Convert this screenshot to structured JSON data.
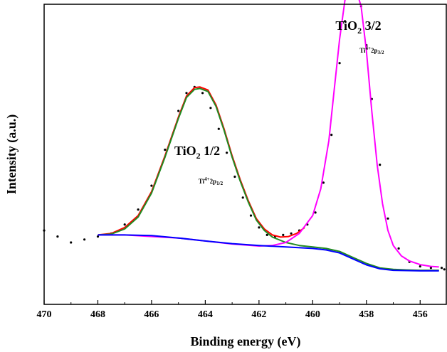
{
  "chart_data": {
    "type": "line",
    "title": "",
    "xlabel": "Binding energy (eV)",
    "ylabel": "Intensity (a.u.)",
    "xlim": [
      470,
      455
    ],
    "x_reversed": true,
    "y_tick_labels": false,
    "xticks": [
      470,
      468,
      466,
      464,
      462,
      460,
      458,
      456
    ],
    "xtick_labels": [
      "470",
      "468",
      "466",
      "464",
      "462",
      "460",
      "458",
      "456"
    ],
    "grid": false,
    "legend": "none",
    "annotations": [
      {
        "main": "TiO",
        "sub": "2",
        "tail": " 1/2",
        "x": 464.3
      },
      {
        "small_main": "Ti",
        "small_sup": "4+",
        "small_mid": "2p",
        "small_sub": "1/2",
        "x": 463.8
      },
      {
        "main": "TiO",
        "sub": "2",
        "tail": " 3/2",
        "x": 458.3
      },
      {
        "small_main": "Ti",
        "small_sup": "4+",
        "small_mid": "2p",
        "small_sub": "3/2",
        "x": 457.8
      }
    ],
    "series": [
      {
        "kind": "measured-dots",
        "color": "#000000",
        "x": [
          470.0,
          469.5,
          469.0,
          468.5,
          468.0,
          467.5,
          467.0,
          466.5,
          466.0,
          465.5,
          465.0,
          464.7,
          464.4,
          464.1,
          463.8,
          463.5,
          463.2,
          462.9,
          462.6,
          462.3,
          462.0,
          461.7,
          461.4,
          461.1,
          460.8,
          460.5,
          460.2,
          459.9,
          459.6,
          459.3,
          459.0,
          458.8,
          458.6,
          458.4,
          458.2,
          458.0,
          457.8,
          457.5,
          457.2,
          456.8,
          456.4,
          456.0,
          455.6,
          455.2,
          455.1
        ],
        "y": [
          0.18,
          0.16,
          0.14,
          0.15,
          0.16,
          0.17,
          0.2,
          0.25,
          0.33,
          0.45,
          0.58,
          0.64,
          0.66,
          0.64,
          0.59,
          0.52,
          0.44,
          0.36,
          0.29,
          0.23,
          0.19,
          0.165,
          0.16,
          0.165,
          0.17,
          0.18,
          0.2,
          0.24,
          0.34,
          0.5,
          0.74,
          0.88,
          0.96,
          0.98,
          0.93,
          0.8,
          0.62,
          0.4,
          0.22,
          0.12,
          0.075,
          0.06,
          0.055,
          0.055,
          0.05
        ]
      },
      {
        "kind": "envelope",
        "color": "#ff0000",
        "x": [
          468.0,
          467.5,
          467.0,
          466.5,
          466.0,
          465.5,
          465.0,
          464.7,
          464.4,
          464.2,
          463.9,
          463.6,
          463.3,
          463.0,
          462.7,
          462.4,
          462.1,
          461.8,
          461.5,
          461.2,
          460.9,
          460.6,
          460.3
        ],
        "y": [
          0.165,
          0.17,
          0.19,
          0.23,
          0.31,
          0.43,
          0.56,
          0.63,
          0.658,
          0.66,
          0.65,
          0.6,
          0.52,
          0.43,
          0.35,
          0.28,
          0.22,
          0.185,
          0.165,
          0.158,
          0.16,
          0.17,
          0.19
        ]
      },
      {
        "kind": "component-1-2",
        "color": "#228b22",
        "x": [
          468.0,
          467.5,
          467.0,
          466.5,
          466.0,
          465.5,
          465.0,
          464.7,
          464.4,
          464.2,
          463.9,
          463.6,
          463.3,
          463.0,
          462.7,
          462.4,
          462.1,
          461.8,
          461.5,
          461.0,
          460.5,
          460.0,
          459.5,
          459.0,
          458.5,
          458.0,
          457.5,
          457.0,
          456.5,
          456.0,
          455.5,
          455.3
        ],
        "y": [
          0.165,
          0.168,
          0.185,
          0.225,
          0.305,
          0.425,
          0.555,
          0.625,
          0.652,
          0.655,
          0.645,
          0.595,
          0.515,
          0.425,
          0.345,
          0.275,
          0.215,
          0.18,
          0.158,
          0.14,
          0.13,
          0.125,
          0.12,
          0.11,
          0.09,
          0.07,
          0.055,
          0.05,
          0.048,
          0.047,
          0.047,
          0.047
        ]
      },
      {
        "kind": "component-3-2",
        "color": "#ff00ff",
        "x": [
          468.0,
          467.0,
          466.0,
          465.0,
          464.0,
          463.0,
          462.0,
          461.5,
          461.0,
          460.5,
          460.0,
          459.7,
          459.4,
          459.2,
          459.0,
          458.8,
          458.6,
          458.5,
          458.4,
          458.2,
          458.0,
          457.8,
          457.6,
          457.4,
          457.2,
          457.0,
          456.7,
          456.4,
          456.0,
          455.6,
          455.3
        ],
        "y": [
          0.165,
          0.165,
          0.16,
          0.155,
          0.145,
          0.135,
          0.128,
          0.13,
          0.14,
          0.17,
          0.23,
          0.32,
          0.48,
          0.65,
          0.82,
          0.95,
          1.0,
          1.0,
          0.99,
          0.93,
          0.78,
          0.58,
          0.4,
          0.27,
          0.18,
          0.13,
          0.095,
          0.078,
          0.066,
          0.06,
          0.058
        ]
      },
      {
        "kind": "background",
        "color": "#0000ff",
        "x": [
          468.0,
          467.0,
          466.0,
          465.0,
          464.0,
          463.0,
          462.0,
          461.0,
          460.0,
          459.5,
          459.0,
          458.5,
          458.0,
          457.5,
          457.0,
          456.0,
          455.3
        ],
        "y": [
          0.165,
          0.165,
          0.163,
          0.155,
          0.145,
          0.136,
          0.13,
          0.125,
          0.12,
          0.115,
          0.105,
          0.085,
          0.065,
          0.052,
          0.047,
          0.045,
          0.045
        ]
      }
    ]
  }
}
